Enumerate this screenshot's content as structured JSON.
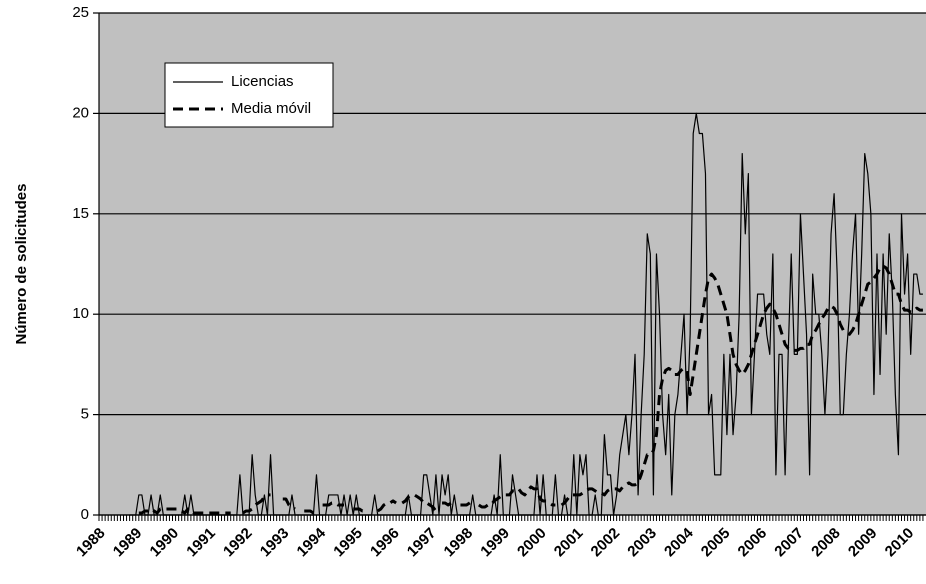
{
  "chart_data": {
    "type": "line",
    "y_label": "Número de solicitudes",
    "categories": [
      "1988",
      null,
      null,
      null,
      null,
      null,
      null,
      null,
      null,
      null,
      null,
      null,
      "1989",
      null,
      null,
      null,
      null,
      null,
      null,
      null,
      null,
      null,
      null,
      null,
      "1990",
      null,
      null,
      null,
      null,
      null,
      null,
      null,
      null,
      null,
      null,
      null,
      "1991",
      null,
      null,
      null,
      null,
      null,
      null,
      null,
      null,
      null,
      null,
      null,
      "1992",
      null,
      null,
      null,
      null,
      null,
      null,
      null,
      null,
      null,
      null,
      null,
      "1993",
      null,
      null,
      null,
      null,
      null,
      null,
      null,
      null,
      null,
      null,
      null,
      "1994",
      null,
      null,
      null,
      null,
      null,
      null,
      null,
      null,
      null,
      null,
      null,
      "1995",
      null,
      null,
      null,
      null,
      null,
      null,
      null,
      null,
      null,
      null,
      null,
      "1996",
      null,
      null,
      null,
      null,
      null,
      null,
      null,
      null,
      null,
      null,
      null,
      "1997",
      null,
      null,
      null,
      null,
      null,
      null,
      null,
      null,
      null,
      null,
      null,
      "1998",
      null,
      null,
      null,
      null,
      null,
      null,
      null,
      null,
      null,
      null,
      null,
      "1999",
      null,
      null,
      null,
      null,
      null,
      null,
      null,
      null,
      null,
      null,
      null,
      "2000",
      null,
      null,
      null,
      null,
      null,
      null,
      null,
      null,
      null,
      null,
      null,
      "2001",
      null,
      null,
      null,
      null,
      null,
      null,
      null,
      null,
      null,
      null,
      null,
      "2002",
      null,
      null,
      null,
      null,
      null,
      null,
      null,
      null,
      null,
      null,
      null,
      "2003",
      null,
      null,
      null,
      null,
      null,
      null,
      null,
      null,
      null,
      null,
      null,
      "2004",
      null,
      null,
      null,
      null,
      null,
      null,
      null,
      null,
      null,
      null,
      null,
      "2005",
      null,
      null,
      null,
      null,
      null,
      null,
      null,
      null,
      null,
      null,
      null,
      "2006",
      null,
      null,
      null,
      null,
      null,
      null,
      null,
      null,
      null,
      null,
      null,
      "2007",
      null,
      null,
      null,
      null,
      null,
      null,
      null,
      null,
      null,
      null,
      null,
      "2008",
      null,
      null,
      null,
      null,
      null,
      null,
      null,
      null,
      null,
      null,
      null,
      "2009",
      null,
      null,
      null,
      null,
      null,
      null,
      null,
      null,
      null,
      null,
      null,
      "2010",
      null,
      null,
      null,
      null,
      null
    ],
    "series": [
      {
        "name": "Licencias",
        "color": "#000000",
        "line_style": "solid",
        "values": [
          null,
          null,
          null,
          null,
          null,
          null,
          null,
          null,
          null,
          null,
          0,
          0,
          0,
          1,
          1,
          0,
          0,
          1,
          0,
          0,
          1,
          0,
          0,
          0,
          0,
          0,
          0,
          0,
          1,
          0,
          1,
          0,
          0,
          0,
          0,
          0,
          0,
          0,
          0,
          0,
          0,
          0,
          0,
          0,
          0,
          0,
          2,
          0,
          0,
          0,
          3,
          1,
          0,
          0,
          1,
          0,
          3,
          0,
          0,
          0,
          0,
          0,
          0,
          1,
          0,
          0,
          0,
          0,
          0,
          0,
          0,
          2,
          0,
          0,
          0,
          1,
          1,
          1,
          1,
          0,
          1,
          0,
          1,
          0,
          1,
          0,
          0,
          0,
          0,
          0,
          1,
          0,
          0,
          0,
          0,
          0,
          0,
          0,
          0,
          0,
          0,
          1,
          0,
          0,
          0,
          0,
          2,
          2,
          1,
          0,
          2,
          0,
          2,
          1,
          2,
          0,
          1,
          0,
          0,
          0,
          0,
          0,
          1,
          0,
          0,
          0,
          0,
          0,
          0,
          1,
          0,
          3,
          0,
          0,
          0,
          2,
          1,
          0,
          0,
          0,
          0,
          0,
          0,
          2,
          0,
          2,
          0,
          0,
          0,
          2,
          0,
          0,
          1,
          0,
          0,
          3,
          0,
          3,
          2,
          3,
          0,
          0,
          1,
          0,
          0,
          4,
          2,
          2,
          0,
          1,
          3,
          4,
          5,
          3,
          5,
          8,
          1,
          5,
          8,
          14,
          13,
          1,
          13,
          10,
          5,
          3,
          6,
          1,
          5,
          6,
          8,
          10,
          5,
          9,
          19,
          20,
          19,
          19,
          17,
          5,
          6,
          2,
          2,
          2,
          8,
          4,
          8,
          4,
          6,
          10,
          18,
          14,
          17,
          5,
          8,
          11,
          11,
          11,
          9,
          8,
          13,
          2,
          8,
          8,
          2,
          8,
          13,
          8,
          8,
          15,
          12,
          9,
          2,
          12,
          10,
          10,
          8,
          5,
          8,
          14,
          16,
          12,
          5,
          5,
          8,
          10,
          13,
          15,
          9,
          13,
          18,
          17,
          15,
          6,
          13,
          7,
          13,
          9,
          14,
          11,
          6,
          3,
          15,
          11,
          13,
          8,
          12,
          12,
          11,
          11
        ]
      },
      {
        "name": "Media móvil",
        "color": "#000000",
        "line_style": "dashed",
        "values": [
          null,
          null,
          null,
          null,
          null,
          null,
          null,
          null,
          null,
          null,
          null,
          null,
          null,
          0.1,
          0.1,
          0.2,
          0.2,
          0.3,
          0.2,
          0.1,
          0.3,
          0.3,
          0.3,
          0.3,
          0.3,
          0.3,
          0.3,
          0.2,
          0.1,
          0.3,
          0.3,
          0.1,
          0.1,
          0.1,
          0.1,
          0.1,
          0.1,
          0.1,
          0.1,
          0.1,
          0.1,
          0.1,
          0.1,
          0.1,
          null,
          null,
          null,
          0.1,
          0.2,
          0.2,
          0.3,
          0.5,
          0.6,
          0.7,
          0.9,
          1,
          1,
          null,
          null,
          null,
          0.8,
          0.8,
          0.5,
          0.4,
          0.3,
          null,
          null,
          0.2,
          0.2,
          0.2,
          0.1,
          0.2,
          null,
          0.5,
          0.5,
          0.5,
          0.6,
          0.6,
          0.5,
          0.5,
          0.5,
          null,
          null,
          0.3,
          0.3,
          0.3,
          0.2,
          0.2,
          0.2,
          null,
          null,
          0.2,
          0.3,
          0.5,
          0.6,
          0.6,
          0.7,
          0.6,
          null,
          0.6,
          0.7,
          0.9,
          1,
          1,
          0.9,
          0.8,
          0.6,
          0.6,
          0.5,
          0.4,
          0.2,
          null,
          0.6,
          0.6,
          0.5,
          0.6,
          null,
          null,
          0.5,
          0.5,
          0.5,
          0.6,
          0.7,
          null,
          0.5,
          0.4,
          0.4,
          0.5,
          0.5,
          0.7,
          0.8,
          0.9,
          1,
          1,
          1,
          1.2,
          1.2,
          1.3,
          1.1,
          1,
          1.2,
          1.4,
          1.3,
          1.3,
          0.8,
          0.7,
          0.7,
          0.6,
          0.5,
          0.5,
          null,
          0.5,
          0.6,
          0.8,
          1,
          1,
          1,
          1,
          1.1,
          1.2,
          1.3,
          1.3,
          1.2,
          1.1,
          1.1,
          1,
          1.2,
          1.3,
          1.3,
          1.3,
          1.2,
          1.4,
          1.5,
          1.6,
          1.5,
          1.5,
          1.6,
          2,
          2.5,
          3,
          3,
          3.2,
          4,
          6,
          6.8,
          7.2,
          7.3,
          7.2,
          7,
          7,
          7.2,
          7.3,
          7.2,
          6,
          7,
          8,
          9,
          10,
          11,
          11.8,
          12,
          11.8,
          11.5,
          11,
          10.5,
          10,
          9,
          8,
          7.5,
          7.2,
          7,
          7.2,
          7.5,
          8,
          8.5,
          9,
          9.5,
          10,
          10.3,
          10.5,
          10.3,
          10,
          9.5,
          9,
          8.5,
          8.3,
          8.3,
          8.2,
          8.2,
          8.3,
          8.3,
          8.5,
          8.5,
          9,
          9.2,
          9.5,
          9.8,
          10,
          10.3,
          10.4,
          10.3,
          10,
          9.5,
          9.2,
          9.1,
          9,
          9.2,
          9.5,
          10,
          10.5,
          11,
          11.5,
          11.6,
          11.8,
          12,
          12.3,
          12.4,
          12.3,
          12,
          11.5,
          11,
          11,
          10.5,
          10.2,
          10.2,
          10.1,
          10.2,
          10.3,
          10.2,
          10.2
        ]
      }
    ],
    "ylim": [
      0,
      25
    ],
    "yticks": [
      0,
      5,
      10,
      15,
      20,
      25
    ],
    "grid": true,
    "plot_background": "#c0c0c0",
    "legend_position": "upper left"
  }
}
